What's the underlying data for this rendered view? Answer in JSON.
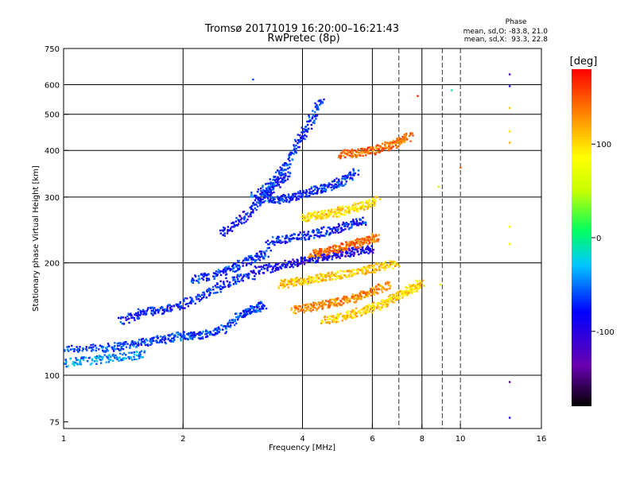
{
  "chart_data": {
    "type": "scatter",
    "title": "Tromsø 20171019 16:20:00–16:21:43",
    "subtitle": "RwPretec (8p)",
    "xlabel": "Frequency [MHz]",
    "ylabel": "Stationary phase Virtual Height [km]",
    "x_scale": "log",
    "y_scale": "log",
    "xlim": [
      1,
      16
    ],
    "ylim": [
      72,
      750
    ],
    "x_ticks": [
      1,
      2,
      4,
      6,
      8,
      10,
      16
    ],
    "y_ticks": [
      75,
      100,
      200,
      300,
      400,
      500,
      600,
      750
    ],
    "x_gridlines": [
      2,
      4,
      6,
      8
    ],
    "x_dashed_lines": [
      7,
      9,
      10
    ],
    "y_gridlines": [
      100,
      200,
      300,
      400,
      500,
      600
    ],
    "grid": true,
    "colorbar": {
      "label": "[deg]",
      "ticks": [
        100,
        0,
        -100
      ],
      "range": [
        -180,
        180
      ]
    },
    "phase_stats": {
      "heading": "Phase",
      "o_line": "mean, sd,O: -83.8, 21.0",
      "x_line": "mean, sd,X:  93.3, 22.8"
    },
    "traces": [
      {
        "x": [
          1.0,
          1.25,
          1.4,
          1.6,
          1.8,
          2.0,
          2.2,
          2.5,
          2.8,
          3.0,
          3.2
        ],
        "y": [
          118,
          118,
          120,
          123,
          125,
          128,
          128,
          132,
          145,
          150,
          155
        ],
        "phase": -85
      },
      {
        "x": [
          1.0,
          1.2,
          1.4,
          1.6
        ],
        "y": [
          108,
          110,
          112,
          114
        ],
        "phase": -65
      },
      {
        "x": [
          1.4,
          1.6,
          1.8,
          2.0,
          2.3,
          2.6,
          3.0
        ],
        "y": [
          140,
          148,
          150,
          155,
          165,
          178,
          185
        ],
        "phase": -95
      },
      {
        "x": [
          2.1,
          2.4,
          2.7,
          3.0,
          3.3
        ],
        "y": [
          180,
          185,
          195,
          205,
          215
        ],
        "phase": -90
      },
      {
        "x": [
          2.5,
          2.8,
          3.1,
          3.4,
          3.7
        ],
        "y": [
          240,
          260,
          290,
          320,
          350
        ],
        "phase": -100
      },
      {
        "x": [
          3.0,
          3.3,
          3.6,
          3.9,
          4.2,
          4.5
        ],
        "y": [
          300,
          320,
          360,
          420,
          480,
          560
        ],
        "phase": -90
      },
      {
        "x": [
          3.2,
          3.5,
          3.8,
          4.2,
          4.6,
          5.0,
          5.5
        ],
        "y": [
          300,
          295,
          300,
          310,
          320,
          330,
          350
        ],
        "phase": -92
      },
      {
        "x": [
          3.0,
          3.4,
          3.8,
          4.2,
          4.6,
          5.0,
          5.5,
          6.0
        ],
        "y": [
          190,
          195,
          200,
          205,
          208,
          212,
          215,
          218
        ],
        "phase": -110
      },
      {
        "x": [
          3.3,
          3.7,
          4.2,
          4.7,
          5.2,
          5.8
        ],
        "y": [
          228,
          232,
          238,
          245,
          252,
          260
        ],
        "phase": -95
      },
      {
        "x": [
          3.5,
          3.8,
          4.1,
          4.5,
          5.0,
          5.6,
          6.2,
          7.0
        ],
        "y": [
          175,
          178,
          180,
          183,
          186,
          190,
          195,
          200
        ],
        "phase": 110
      },
      {
        "x": [
          3.8,
          4.2,
          4.6,
          5.0,
          5.5,
          6.0,
          6.6
        ],
        "y": [
          150,
          152,
          155,
          158,
          162,
          168,
          175
        ],
        "phase": 130
      },
      {
        "x": [
          4.0,
          4.4,
          4.8,
          5.2,
          5.7,
          6.2
        ],
        "y": [
          265,
          268,
          272,
          278,
          285,
          295
        ],
        "phase": 100
      },
      {
        "x": [
          4.2,
          4.6,
          5.0,
          5.4,
          5.8,
          6.2
        ],
        "y": [
          210,
          215,
          220,
          225,
          230,
          236
        ],
        "phase": 140
      },
      {
        "x": [
          4.5,
          5.0,
          5.5,
          6.0,
          6.5,
          7.0,
          7.5,
          8.0
        ],
        "y": [
          140,
          143,
          147,
          152,
          157,
          163,
          170,
          178
        ],
        "phase": 105
      },
      {
        "x": [
          5.0,
          5.5,
          6.0,
          6.5,
          7.0,
          7.5
        ],
        "y": [
          390,
          395,
          400,
          410,
          420,
          440
        ],
        "phase": 140
      }
    ],
    "isolated_points": [
      {
        "x": 13.3,
        "y": 640,
        "phase": -130
      },
      {
        "x": 13.3,
        "y": 595,
        "phase": -120
      },
      {
        "x": 13.3,
        "y": 520,
        "phase": 110
      },
      {
        "x": 13.3,
        "y": 450,
        "phase": 100
      },
      {
        "x": 13.3,
        "y": 420,
        "phase": 120
      },
      {
        "x": 13.3,
        "y": 250,
        "phase": 90
      },
      {
        "x": 13.3,
        "y": 225,
        "phase": 95
      },
      {
        "x": 13.3,
        "y": 96,
        "phase": -150
      },
      {
        "x": 13.3,
        "y": 77,
        "phase": -110
      },
      {
        "x": 9.5,
        "y": 580,
        "phase": -20
      },
      {
        "x": 8.8,
        "y": 320,
        "phase": 40
      },
      {
        "x": 8.9,
        "y": 175,
        "phase": 60
      },
      {
        "x": 10.0,
        "y": 360,
        "phase": 150
      },
      {
        "x": 7.8,
        "y": 560,
        "phase": 170
      },
      {
        "x": 3.0,
        "y": 620,
        "phase": -80
      }
    ]
  }
}
